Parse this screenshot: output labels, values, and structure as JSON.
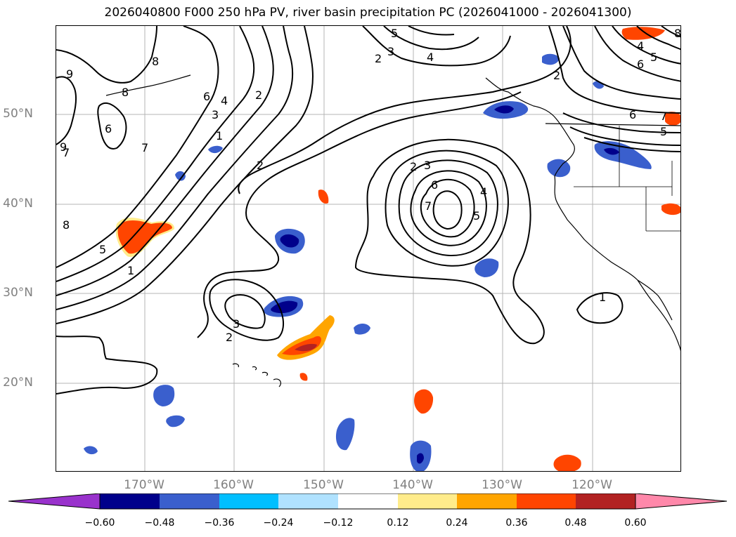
{
  "title": "2026040800 F000 250 hPa PV, river basin precipitation PC (2026041000 - 2026041300)",
  "lat_labels": [
    "50°N",
    "40°N",
    "30°N",
    "20°N"
  ],
  "lon_labels": [
    "170°W",
    "160°W",
    "150°W",
    "140°W",
    "130°W",
    "120°W"
  ],
  "contour_labels": {
    "nw_9": "9",
    "nw_8a": "8",
    "nw_8b": "8",
    "nw_7": "7",
    "nw_6": "6",
    "nw_9b": "9",
    "jet_6": "6",
    "jet_4": "4",
    "jet_3": "3",
    "jet_1": "1",
    "jet_2": "2",
    "mid_2": "2",
    "sw_8": "8",
    "sw_7": "7",
    "sw_5": "5",
    "sw_1": "1",
    "low_3": "3",
    "low_2": "2",
    "n_5": "5",
    "n_3": "3",
    "n_2": "2",
    "n_4": "4",
    "cut_2": "2",
    "cut_3": "3",
    "cut_6": "6",
    "cut_7": "7",
    "cut_5": "5",
    "cut_4": "4",
    "ne_4": "4",
    "ne_5": "5",
    "ne_6": "6",
    "ne_7": "7",
    "ne_5b": "5",
    "ne_6b": "6",
    "ne_2": "2",
    "ne_8": "8",
    "se_1": "1"
  },
  "colorbar": {
    "ticks": [
      "−0.60",
      "−0.48",
      "−0.36",
      "−0.24",
      "−0.12",
      "0.12",
      "0.24",
      "0.36",
      "0.48",
      "0.60"
    ],
    "colors": [
      "#9932CC",
      "#00008B",
      "#3A5FCD",
      "#00BFFF",
      "#B0E2FF",
      "#FFFFFF",
      "#FFEC8B",
      "#FFA500",
      "#FF4500",
      "#B22222",
      "#FF88AA"
    ]
  }
}
